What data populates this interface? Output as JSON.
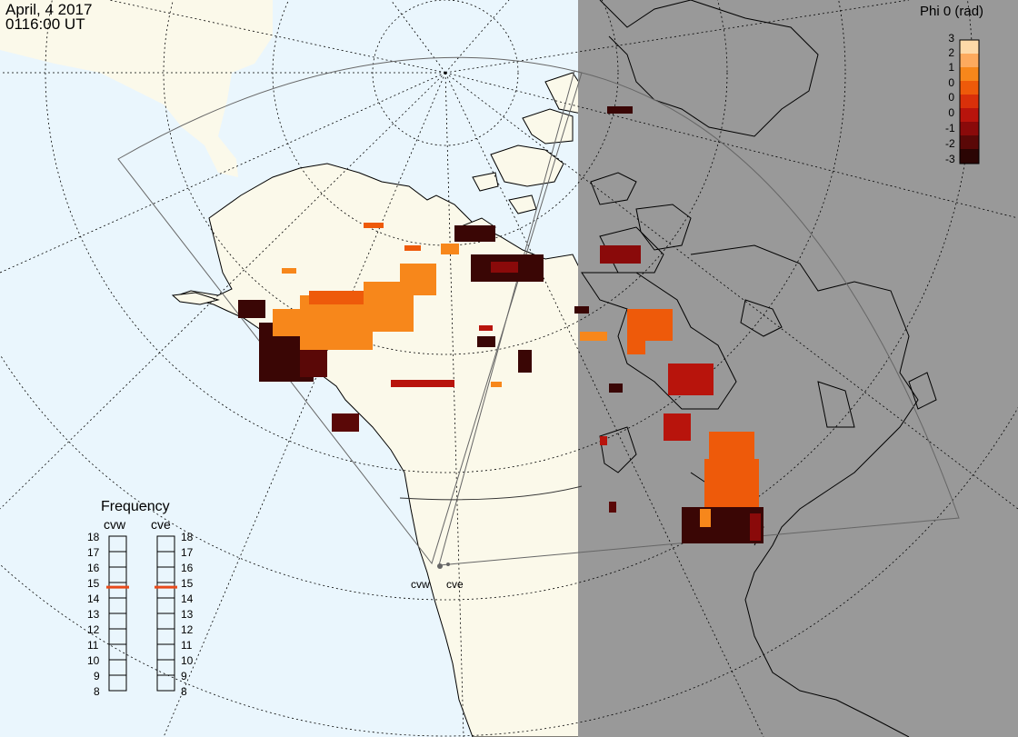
{
  "title": {
    "date": "April, 4 2017",
    "time": "0116:00 UT"
  },
  "colorbar": {
    "title": "Phi 0 (rad)",
    "ticks": [
      "3",
      "2",
      "1",
      "0",
      "0",
      "0",
      "-1",
      "-2",
      "-3"
    ],
    "colors": [
      "#fdd9a8",
      "#fdaa5e",
      "#f7871b",
      "#ee5a0a",
      "#d9300a",
      "#b8140c",
      "#8a0a0a",
      "#5a0807",
      "#2b0504"
    ]
  },
  "frequency": {
    "title": "Frequency",
    "cvw_label": "cvw",
    "cve_label": "cve",
    "ticks": [
      "18",
      "17",
      "16",
      "15",
      "14",
      "13",
      "12",
      "11",
      "10",
      "9",
      "8"
    ],
    "cvw_value": 15,
    "cve_value": 15,
    "marker_color": "#e84a1a"
  },
  "radars": {
    "west": "cvw",
    "east": "cve"
  },
  "map_colors": {
    "ocean": "#eaf6fd",
    "land": "#fbf9ea",
    "night": "#999999",
    "coast": "#000000"
  }
}
